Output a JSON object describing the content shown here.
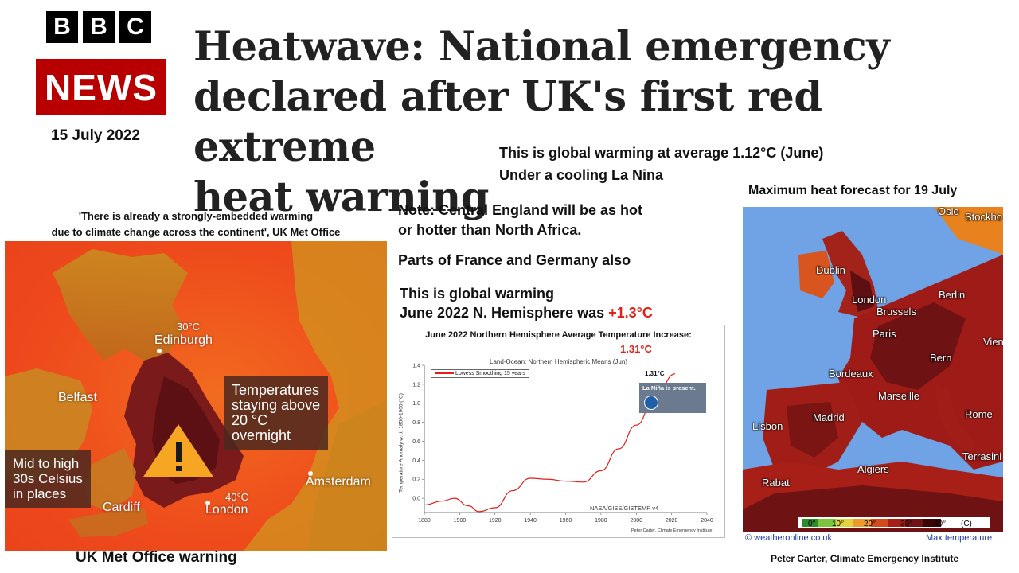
{
  "logo": {
    "letters": [
      "B",
      "B",
      "C"
    ],
    "news": "NEWS"
  },
  "date": "15 July 2022",
  "headline": [
    "Heatwave: National emergency",
    "declared after UK's first red extreme",
    "heat warning"
  ],
  "global_note": {
    "line1": "This is global warming at average 1.12°C (June)",
    "line2": "Under a cooling La Nina"
  },
  "met_quote": {
    "line1": "'There is already a strongly-embedded warming",
    "line2": "due to climate change across the continent', UK Met Office"
  },
  "note_central": {
    "line1": "Note: Central England will be as hot",
    "line2": "or hotter than North Africa."
  },
  "note_parts": "Parts of France and Germany also",
  "nh_note": {
    "line1": "This is global warming",
    "line2_prefix": "June 2022 N. Hemisphere was ",
    "line2_value": "+1.3°C"
  },
  "forecast_title": "Maximum heat forecast for 19 July",
  "uk_map": {
    "cities": {
      "edinburgh": "Edinburgh",
      "belfast": "Belfast",
      "cardiff": "Cardiff",
      "london": "London",
      "amsterdam": "Amsterdam"
    },
    "temps": {
      "edinburgh": "30°C",
      "london": "40°C"
    },
    "box_overnight": [
      "Temperatures",
      "staying above",
      "20 °C",
      "overnight"
    ],
    "box_mid": [
      "Mid to high",
      "30s Celsius",
      "in places"
    ],
    "caption": "UK Met Office warning"
  },
  "eu_map": {
    "cities": {
      "oslo": "Oslo",
      "stockholm": "Stockho",
      "dublin": "Dublin",
      "london": "London",
      "brussels": "Brussels",
      "berlin": "Berlin",
      "paris": "Paris",
      "vienna": "Vienn",
      "bern": "Bern",
      "bordeaux": "Bordeaux",
      "marseille": "Marseille",
      "madrid": "Madrid",
      "lisbon": "Lisbon",
      "rome": "Rome",
      "terrasini": "Terrasini",
      "algiers": "Algiers",
      "rabat": "Rabat"
    },
    "scale": {
      "ticks": [
        "0°",
        "10°",
        "20°",
        "30°",
        "40°",
        "(C)"
      ]
    },
    "source": "© weatheronline.co.uk",
    "legend": "Max temperature"
  },
  "credit": "Peter Carter,  Climate Emergency Institute",
  "chart": {
    "heading": "June 2022 Northern Hemisphere Average Temperature Increase:",
    "heading_value": "1.31°C",
    "subtitle": "Land-Ocean: Northern Hemispheric Means (Jun)",
    "legend_label": "Lowess Smoothing  15 years",
    "endpoint_label": "1.31°C",
    "la_nina": "La Niña is present.",
    "source": "NASA/GISS/GISTEMP v4",
    "credit": "Peter Carter,  Climate Emergency Institute",
    "ylabel": "Temperature Anomaly w.r.t. 1850-1900 (°C)"
  },
  "chart_data": {
    "type": "line",
    "title": "Land-Ocean: Northern Hemispheric Means (Jun)",
    "xlabel": "",
    "ylabel": "Temperature Anomaly w.r.t. 1850-1900 (°C)",
    "xlim": [
      1880,
      2040
    ],
    "ylim": [
      0,
      1.4
    ],
    "xticks": [
      1880,
      1900,
      1920,
      1940,
      1960,
      1980,
      2000,
      2020,
      2040
    ],
    "yticks": [
      0.0,
      0.2,
      0.4,
      0.6,
      0.8,
      1.0,
      1.2,
      1.4
    ],
    "grid": false,
    "legend": "top-left",
    "series": [
      {
        "name": "Lowess Smoothing  15 years",
        "color": "#e0201b",
        "x": [
          1880,
          1890,
          1897,
          1905,
          1911,
          1920,
          1930,
          1940,
          1950,
          1960,
          1970,
          1980,
          1990,
          2000,
          2010,
          2022
        ],
        "y": [
          -0.07,
          -0.03,
          0.0,
          -0.08,
          -0.14,
          -0.1,
          0.08,
          0.21,
          0.2,
          0.18,
          0.17,
          0.29,
          0.52,
          0.77,
          1.03,
          1.31
        ]
      }
    ]
  },
  "colors": {
    "bbc_red": "#b80000",
    "accent_red": "#e0201b",
    "heat_dark": "#7a1a1a",
    "sea_blue": "#6fa3e6"
  }
}
